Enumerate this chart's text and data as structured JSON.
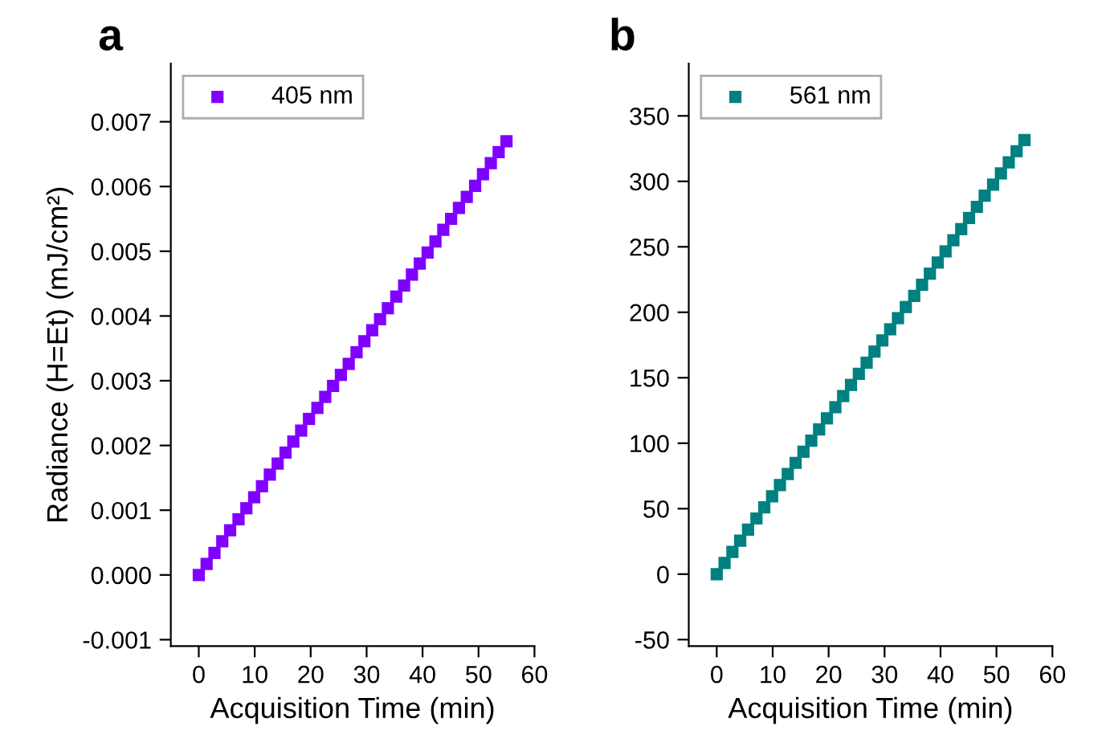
{
  "chart_data": [
    {
      "type": "scatter",
      "title": "a",
      "xlabel": "Acquisition Time (min)",
      "ylabel": "Radiance (H=Et) (mJ/cm²)",
      "marker": "square",
      "legend": "top left",
      "grid": false,
      "xlim": [
        -5,
        60
      ],
      "xticks": [
        0,
        10,
        20,
        30,
        40,
        50,
        60
      ],
      "ylim": [
        -0.0011,
        0.0079
      ],
      "yticks": [
        {
          "value": -0.001,
          "label": "-0.001"
        },
        {
          "value": 0,
          "label": "0.000"
        },
        {
          "value": 0.001,
          "label": "0.001"
        },
        {
          "value": 0.002,
          "label": "0.002"
        },
        {
          "value": 0.003,
          "label": "0.003"
        },
        {
          "value": 0.004,
          "label": "0.004"
        },
        {
          "value": 0.005,
          "label": "0.005"
        },
        {
          "value": 0.006,
          "label": "0.006"
        },
        {
          "value": 0.007,
          "label": "0.007"
        }
      ],
      "x": [
        0,
        1.4,
        2.8,
        4.2,
        5.6,
        7.1,
        8.5,
        9.9,
        11.3,
        12.7,
        14.1,
        15.5,
        16.9,
        18.3,
        19.7,
        21.2,
        22.6,
        24.0,
        25.4,
        26.8,
        28.2,
        29.6,
        31.0,
        32.4,
        33.8,
        35.3,
        36.7,
        38.1,
        39.5,
        40.9,
        42.3,
        43.7,
        45.1,
        46.5,
        47.9,
        49.4,
        50.8,
        52.2,
        53.6,
        55.0
      ],
      "series": [
        {
          "name": "405 nm",
          "color": "#8000ff",
          "values": [
            0,
            0.00017,
            0.00034,
            0.00052,
            0.00069,
            0.00086,
            0.00103,
            0.0012,
            0.00137,
            0.00155,
            0.00172,
            0.00189,
            0.00206,
            0.00223,
            0.00241,
            0.00258,
            0.00275,
            0.00292,
            0.00309,
            0.00326,
            0.00344,
            0.00361,
            0.00378,
            0.00395,
            0.00412,
            0.0043,
            0.00447,
            0.00464,
            0.00481,
            0.00498,
            0.00515,
            0.00533,
            0.0055,
            0.00567,
            0.00584,
            0.00601,
            0.00619,
            0.00636,
            0.00653,
            0.0067
          ]
        }
      ]
    },
    {
      "type": "scatter",
      "title": "b",
      "xlabel": "Acquisition Time (min)",
      "marker": "square",
      "legend": "top left",
      "grid": false,
      "xlim": [
        -5,
        60
      ],
      "xticks": [
        0,
        10,
        20,
        30,
        40,
        50,
        60
      ],
      "ylim": [
        -55,
        390
      ],
      "yticks": [
        -50,
        0,
        50,
        100,
        150,
        200,
        250,
        300,
        350
      ],
      "x": [
        0,
        1.4,
        2.8,
        4.2,
        5.6,
        7.1,
        8.5,
        9.9,
        11.3,
        12.7,
        14.1,
        15.5,
        16.9,
        18.3,
        19.7,
        21.2,
        22.6,
        24.0,
        25.4,
        26.8,
        28.2,
        29.6,
        31.0,
        32.4,
        33.8,
        35.3,
        36.7,
        38.1,
        39.5,
        40.9,
        42.3,
        43.7,
        45.1,
        46.5,
        47.9,
        49.4,
        50.8,
        52.2,
        53.6,
        55.0
      ],
      "series": [
        {
          "name": "561 nm",
          "color": "#008080",
          "values": [
            0,
            8.5,
            17,
            25.5,
            34,
            42.5,
            51,
            59.5,
            68,
            76.5,
            85,
            93.5,
            102,
            110.5,
            119,
            127.5,
            136,
            144.5,
            153,
            161.5,
            170,
            178.5,
            187,
            195.5,
            204,
            212.5,
            221,
            229.5,
            238,
            246.5,
            255,
            263.5,
            272,
            280.5,
            289,
            297.5,
            306,
            314.5,
            323,
            331.5
          ]
        }
      ]
    }
  ]
}
